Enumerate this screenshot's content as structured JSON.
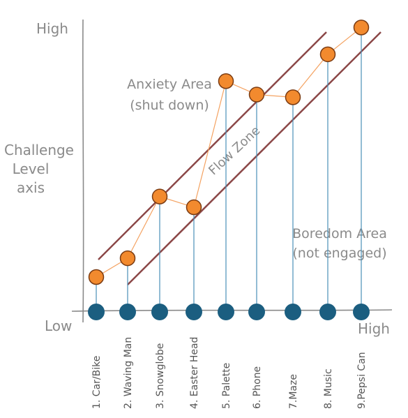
{
  "chart_data": {
    "type": "line",
    "categories": [
      "1. Car/Bike",
      "2. Waving Man",
      "3. Snowglobe",
      "4. Easter Head",
      "5. Palette",
      "6. Phone",
      "7.Maze",
      "8. Music",
      "9.Pepsi Can"
    ],
    "values": [
      1.3,
      2.0,
      4.3,
      3.9,
      8.6,
      8.1,
      8.0,
      9.6,
      10.6
    ],
    "ylim": [
      0,
      11
    ],
    "ylabel": [
      "Challenge",
      "Level",
      "axis"
    ],
    "y_high_label": "High",
    "y_low_label": "Low",
    "x_high_label": "High",
    "grid": false,
    "zones": {
      "anxiety": [
        "Anxiety Area",
        "(shut down)"
      ],
      "flow": "Flow Zone",
      "boredom": [
        "Boredom Area",
        "(not engaged)"
      ]
    },
    "colors": {
      "point_fill": "#f28a2e",
      "point_stroke": "#7a3b12",
      "line": "#f4a261",
      "baseline_dot": "#1b5e80",
      "drop_line": "#4a90b8",
      "band_line": "#8b4747",
      "axis": "#8a8a8a",
      "text": "#8a8a8a"
    }
  }
}
